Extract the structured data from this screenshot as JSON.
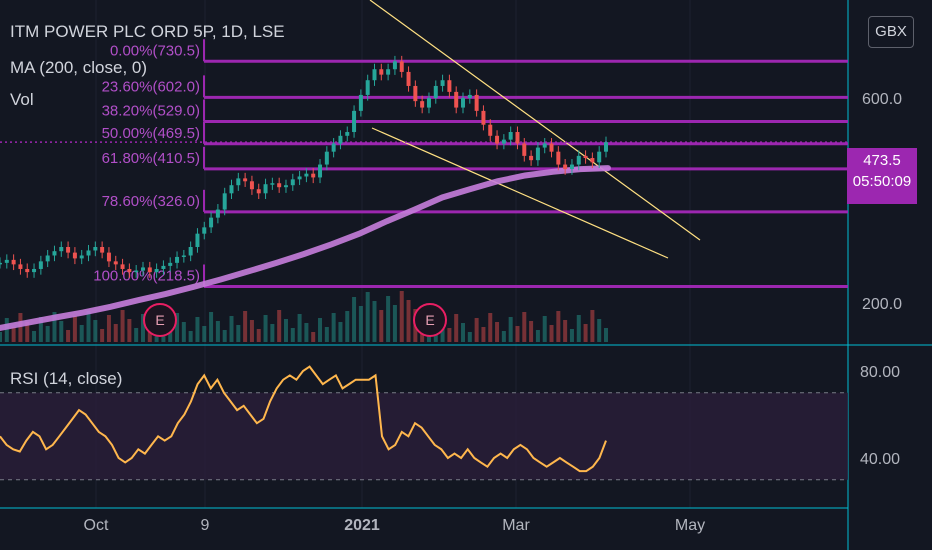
{
  "legend": {
    "title": "ITM POWER PLC ORD 5P, 1D, LSE",
    "ma": "MA (200, close, 0)",
    "vol": "Vol",
    "rsi": "RSI (14, close)"
  },
  "currency_button": "GBX",
  "price_badge": {
    "price": "473.5",
    "countdown": "05:50:09"
  },
  "earnings_marker": "E",
  "colors": {
    "background": "#131722",
    "fib": "#9c27b0",
    "ma": "#c77ddb",
    "rsi": "#ffb74d",
    "up": "#26a69a",
    "down": "#ef5350",
    "trendline": "#ffe082"
  },
  "chart_data": [
    {
      "type": "candlestick",
      "price_axis": {
        "scale": "log",
        "ticks": [
          200.0,
          600.0
        ]
      },
      "x_ticks": [
        "Oct",
        "9",
        "2021",
        "Mar",
        "May"
      ],
      "current_price": 473.5,
      "fib_levels": [
        {
          "label": "0.00%(730.5)",
          "value": 730.5
        },
        {
          "label": "23.60%(602.0)",
          "value": 602.0
        },
        {
          "label": "38.20%(529.0)",
          "value": 529.0
        },
        {
          "label": "50.00%(469.5)",
          "value": 469.5
        },
        {
          "label": "61.80%(410.5)",
          "value": 410.5
        },
        {
          "label": "78.60%(326.0)",
          "value": 326.0
        },
        {
          "label": "100.00%(218.5)",
          "value": 218.5
        }
      ],
      "close_series": [
        248,
        252,
        246,
        240,
        236,
        240,
        250,
        258,
        264,
        270,
        262,
        254,
        258,
        265,
        270,
        262,
        250,
        246,
        240,
        236,
        238,
        242,
        236,
        240,
        244,
        248,
        256,
        258,
        270,
        290,
        300,
        316,
        330,
        360,
        376,
        390,
        384,
        368,
        360,
        378,
        380,
        372,
        376,
        388,
        394,
        400,
        392,
        420,
        450,
        470,
        490,
        500,
        560,
        610,
        660,
        700,
        680,
        700,
        730,
        690,
        640,
        590,
        570,
        600,
        640,
        660,
        620,
        570,
        600,
        610,
        560,
        520,
        490,
        470,
        480,
        500,
        470,
        440,
        430,
        460,
        470,
        450,
        420,
        410,
        420,
        440,
        435,
        425,
        450,
        473.5
      ],
      "ma_200": [
        175,
        180,
        185,
        190,
        196,
        203,
        210,
        218,
        227,
        237,
        248,
        260,
        274,
        290,
        310,
        330,
        352,
        368,
        384,
        396,
        404,
        410,
        412
      ],
      "earnings_markers": 2
    },
    {
      "type": "line",
      "name": "RSI (14, close)",
      "y_ticks": [
        40.0,
        80.0
      ],
      "band": [
        30,
        70
      ],
      "values": [
        50,
        46,
        44,
        43,
        48,
        52,
        50,
        44,
        46,
        50,
        54,
        58,
        62,
        60,
        56,
        52,
        50,
        46,
        40,
        38,
        40,
        44,
        42,
        46,
        50,
        48,
        50,
        56,
        60,
        66,
        74,
        78,
        72,
        76,
        70,
        66,
        62,
        64,
        60,
        56,
        58,
        66,
        72,
        76,
        78,
        76,
        80,
        82,
        78,
        74,
        76,
        78,
        72,
        74,
        76,
        76,
        76,
        78,
        50,
        44,
        46,
        52,
        50,
        56,
        54,
        50,
        46,
        44,
        40,
        42,
        40,
        44,
        40,
        38,
        36,
        40,
        42,
        40,
        44,
        46,
        44,
        40,
        38,
        36,
        38,
        40,
        38,
        36,
        34,
        34,
        36,
        40,
        48
      ]
    }
  ]
}
